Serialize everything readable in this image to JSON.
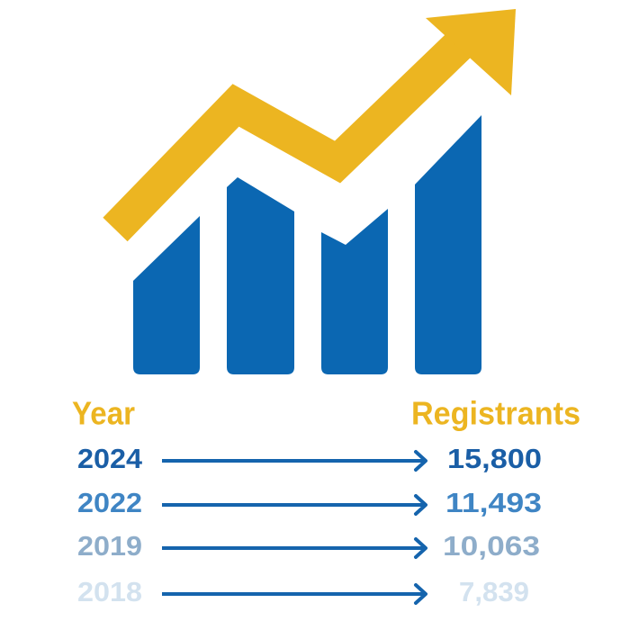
{
  "table": {
    "header": {
      "year": "Year",
      "registrants": "Registrants"
    },
    "rows": [
      {
        "year": "2024",
        "registrants": "15,800"
      },
      {
        "year": "2022",
        "registrants": "11,493"
      },
      {
        "year": "2019",
        "registrants": "10,063"
      },
      {
        "year": "2018",
        "registrants": "7,839"
      }
    ]
  }
}
